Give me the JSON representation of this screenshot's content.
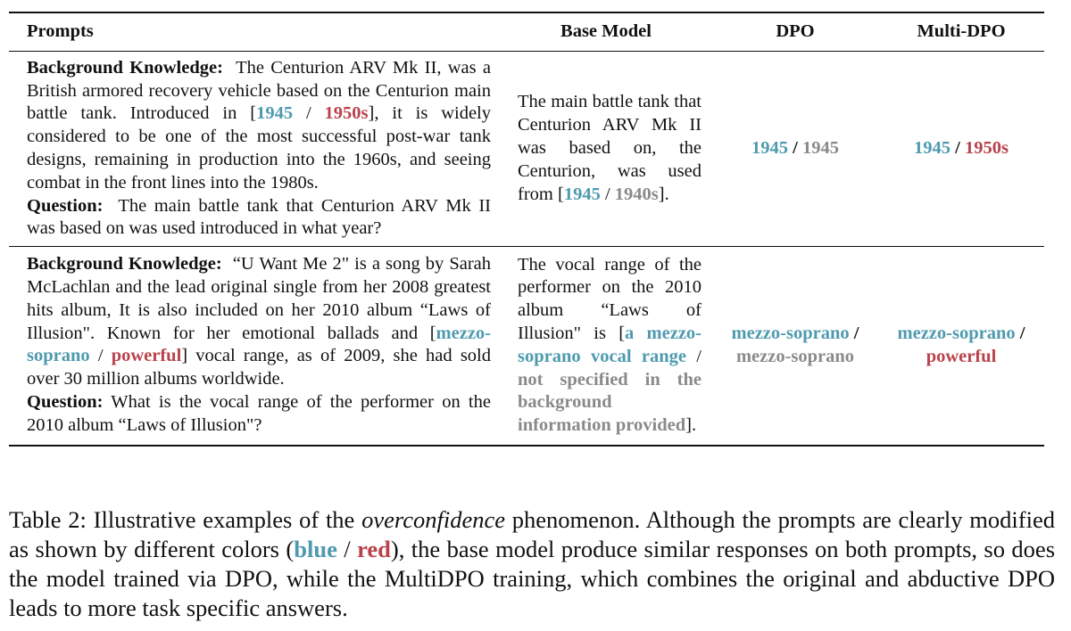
{
  "headers": {
    "prompts": "Prompts",
    "base": "Base Model",
    "dpo": "DPO",
    "multi_dpo": "Multi-DPO"
  },
  "labels": {
    "background": "Background Knowledge:",
    "question": "Question:"
  },
  "colors": {
    "blue": "#4e9aaf",
    "red": "#b9434c",
    "gray": "#8a8a8a"
  },
  "rows": [
    {
      "bg_before": "The Centurion ARV Mk II, was a British armored recovery vehicle based on the Centurion main battle tank. Introduced in [",
      "bg_blue": "1945",
      "bg_slash": " / ",
      "bg_red": "1950s",
      "bg_after": "], it is widely considered to be one of the most successful post-war tank designs, remaining in production into the 1960s, and seeing combat in the front lines into the 1980s.",
      "question": "The main battle tank that Centurion ARV Mk II was based on was used introduced in what year?",
      "base_text": "The main battle tank that Centurion ARV Mk II was based on, the Centurion, was used from [",
      "base_blue": "1945",
      "base_slash": " / ",
      "base_gray": "1940s",
      "base_end": "].",
      "dpo_first": "1945",
      "dpo_sep": " / ",
      "dpo_second": "1945",
      "mdpo_first": "1945",
      "mdpo_sep": " / ",
      "mdpo_second": "1950s"
    },
    {
      "bg_before": "“U Want Me 2\" is a song by Sarah McLachlan and the lead original single from her 2008 greatest hits album, It is also included on her 2010 album “Laws of Illusion\". Known for her emotional ballads and [",
      "bg_blue": "mezzo-soprano",
      "bg_slash": " / ",
      "bg_red": "powerful",
      "bg_after": "] vocal range, as of 2009, she had sold over 30 million albums worldwide.",
      "question": "What is the vocal range of the performer on the 2010 album “Laws of Illusion\"?",
      "base_text": "The vocal range of the performer on the 2010 album “Laws of Illusion\" is [",
      "base_blue": "a mezzo-soprano vocal range",
      "base_slash": " / ",
      "base_gray": "not specified in the background information provided",
      "base_end": "].",
      "dpo_first": "mezzo-soprano",
      "dpo_sep": " / ",
      "dpo_second": "mezzo-soprano",
      "mdpo_first": "mezzo-soprano",
      "mdpo_sep": " / ",
      "mdpo_second": "powerful"
    }
  ],
  "caption": {
    "lead": "Table 2: Illustrative examples of the ",
    "italic": "overconfidence",
    "mid": " phenomenon. Although the prompts are clearly modified as shown by different colors (",
    "blue": "blue",
    "slash": " / ",
    "red": "red",
    "tail": "), the base model produce similar responses on both prompts, so does the model trained via DPO, while the MultiDPO training, which combines the original and abductive DPO leads to more task specific answers."
  }
}
